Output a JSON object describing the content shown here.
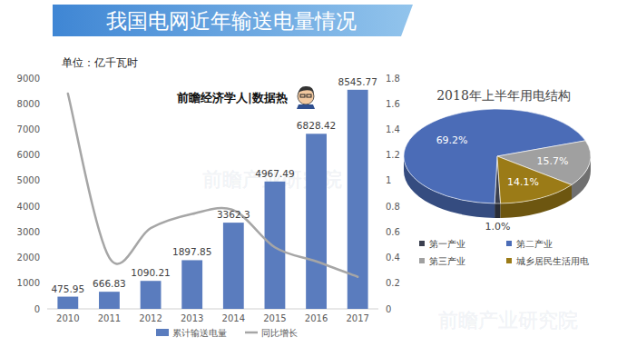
{
  "title": "我国电网近年输送电量情况",
  "watermark": "前瞻产业研究院",
  "chart_data": [
    {
      "type": "bar",
      "ylabel": "单位：亿千瓦时",
      "annotations": [
        "前瞻经济学人|数据热"
      ],
      "categories": [
        "2010",
        "2011",
        "2012",
        "2013",
        "2014",
        "2015",
        "2016",
        "2017"
      ],
      "series": [
        {
          "name": "累计输送电量",
          "type": "bar",
          "color": "#5a7cbe",
          "data_labels": true,
          "values": [
            475.95,
            666.83,
            1090.21,
            1897.85,
            3362.3,
            4967.49,
            6828.42,
            8545.77
          ]
        },
        {
          "name": "同比增长",
          "type": "line",
          "axis": "y2",
          "color": "#a6a6a6",
          "line_style": "smooth",
          "values": [
            1.68,
            0.4,
            0.63,
            0.74,
            0.77,
            0.48,
            0.37,
            0.25
          ]
        }
      ],
      "ylim": [
        0,
        9000
      ],
      "yticks": [
        0,
        1000,
        2000,
        3000,
        4000,
        5000,
        6000,
        7000,
        8000,
        9000
      ],
      "y2lim": [
        0,
        1.8
      ],
      "y2ticks": [
        0,
        0.2,
        0.4,
        0.6,
        0.8,
        1,
        1.2,
        1.4,
        1.6,
        1.8
      ],
      "grid": false,
      "legend": "bottom"
    },
    {
      "type": "pie",
      "title": "2018年上半年用电结构",
      "categories": [
        "第一产业",
        "第二产业",
        "第三产业",
        "城乡居民生活用电"
      ],
      "values": [
        1.0,
        69.2,
        15.7,
        14.1
      ],
      "value_labels": [
        "1.0%",
        "69.2%",
        "15.7%",
        "14.1%"
      ],
      "colors": [
        "#3b4050",
        "#4b6cb7",
        "#a0a0a0",
        "#9b7b17"
      ],
      "data_labels": true,
      "legend": "bottom"
    }
  ]
}
